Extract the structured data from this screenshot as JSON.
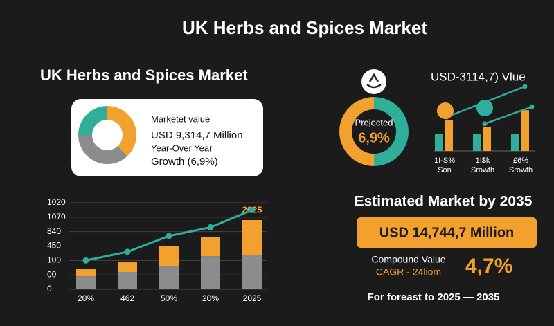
{
  "header": {
    "title": "UK Herbs and Spices Market"
  },
  "summary": {
    "heading": "UK Herbs and Spices Market",
    "donut": {
      "type": "pie",
      "values": [
        38,
        37,
        25
      ],
      "colors": [
        "#f2a12e",
        "#8c8c8c",
        "#2fae9a"
      ]
    },
    "lines": [
      "Marketet value",
      "USD 9,314,7 Million",
      "Year-Over Year",
      "Growth (6,9%)"
    ]
  },
  "projection": {
    "donut": {
      "type": "pie",
      "values": [
        50,
        50
      ],
      "colors": [
        "#2fae9a",
        "#f2a12e"
      ]
    },
    "label": "Projected",
    "value_label": "6,9%"
  },
  "mini_chart": {
    "type": "bar",
    "title": "USD-3114,7) Vlue",
    "categories": [
      [
        "1I-S%",
        "Son"
      ],
      [
        "1I$k",
        "Srowth"
      ],
      [
        "£6%",
        "Srowth"
      ]
    ],
    "ylim": [
      0,
      10
    ],
    "series": [
      {
        "color": "#2fae9a",
        "values": [
          2.5,
          2.5,
          2.5
        ]
      },
      {
        "color": "#f2a12e",
        "values": [
          4.5,
          3.5,
          6
        ]
      }
    ],
    "trend_lines": [
      [
        5,
        9.5
      ],
      [
        4,
        6.5
      ]
    ],
    "line_color": "#2fae9a"
  },
  "main_chart": {
    "type": "bar",
    "categories": [
      "20%",
      "462",
      "50%",
      "20%",
      "2025"
    ],
    "highlight": "2025",
    "ylim": [
      0,
      6.3
    ],
    "yticks": [
      {
        "value": 0,
        "label": "0"
      },
      {
        "value": 1,
        "label": "00"
      },
      {
        "value": 2,
        "label": "100"
      },
      {
        "value": 3,
        "label": "450"
      },
      {
        "value": 4,
        "label": "840"
      },
      {
        "value": 5,
        "label": "1070"
      },
      {
        "value": 6,
        "label": "1020"
      }
    ],
    "grid": true,
    "series": [
      {
        "color": "#8c8c8c",
        "values": [
          0.9,
          1.2,
          1.6,
          2.3,
          2.4
        ]
      },
      {
        "color": "#f2a12e",
        "values": [
          0.5,
          0.7,
          1.4,
          1.3,
          2.4
        ]
      }
    ],
    "line": {
      "color": "#2fae9a",
      "values": [
        2,
        2.6,
        3.7,
        4.3,
        5.5
      ]
    }
  },
  "estimate": {
    "heading": "Estimated Market by 2035",
    "value": "USD 14,744,7 Million",
    "compound_label": "Compound Value",
    "cagr_label": "CAGR - 24liom",
    "cagr": "4,7%",
    "footer": "For foreast to 2025 — 2035"
  }
}
